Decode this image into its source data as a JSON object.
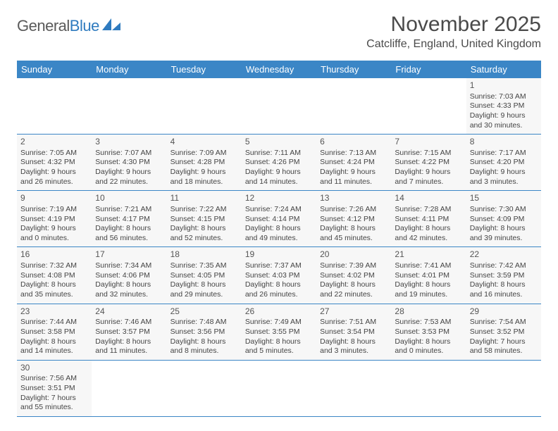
{
  "logo": {
    "text1": "General",
    "text2": "Blue",
    "color1": "#5a5a5a",
    "color2": "#2f7bbf",
    "sail_color": "#2f7bbf"
  },
  "title": "November 2025",
  "location": "Catcliffe, England, United Kingdom",
  "colors": {
    "header_bg": "#3b86c6",
    "cell_bg": "#f7f7f7",
    "border": "#3b86c6"
  },
  "day_labels": [
    "Sunday",
    "Monday",
    "Tuesday",
    "Wednesday",
    "Thursday",
    "Friday",
    "Saturday"
  ],
  "weeks": [
    [
      null,
      null,
      null,
      null,
      null,
      null,
      {
        "n": "1",
        "sr": "7:03 AM",
        "ss": "4:33 PM",
        "dl": "9 hours and 30 minutes."
      }
    ],
    [
      {
        "n": "2",
        "sr": "7:05 AM",
        "ss": "4:32 PM",
        "dl": "9 hours and 26 minutes."
      },
      {
        "n": "3",
        "sr": "7:07 AM",
        "ss": "4:30 PM",
        "dl": "9 hours and 22 minutes."
      },
      {
        "n": "4",
        "sr": "7:09 AM",
        "ss": "4:28 PM",
        "dl": "9 hours and 18 minutes."
      },
      {
        "n": "5",
        "sr": "7:11 AM",
        "ss": "4:26 PM",
        "dl": "9 hours and 14 minutes."
      },
      {
        "n": "6",
        "sr": "7:13 AM",
        "ss": "4:24 PM",
        "dl": "9 hours and 11 minutes."
      },
      {
        "n": "7",
        "sr": "7:15 AM",
        "ss": "4:22 PM",
        "dl": "9 hours and 7 minutes."
      },
      {
        "n": "8",
        "sr": "7:17 AM",
        "ss": "4:20 PM",
        "dl": "9 hours and 3 minutes."
      }
    ],
    [
      {
        "n": "9",
        "sr": "7:19 AM",
        "ss": "4:19 PM",
        "dl": "9 hours and 0 minutes."
      },
      {
        "n": "10",
        "sr": "7:21 AM",
        "ss": "4:17 PM",
        "dl": "8 hours and 56 minutes."
      },
      {
        "n": "11",
        "sr": "7:22 AM",
        "ss": "4:15 PM",
        "dl": "8 hours and 52 minutes."
      },
      {
        "n": "12",
        "sr": "7:24 AM",
        "ss": "4:14 PM",
        "dl": "8 hours and 49 minutes."
      },
      {
        "n": "13",
        "sr": "7:26 AM",
        "ss": "4:12 PM",
        "dl": "8 hours and 45 minutes."
      },
      {
        "n": "14",
        "sr": "7:28 AM",
        "ss": "4:11 PM",
        "dl": "8 hours and 42 minutes."
      },
      {
        "n": "15",
        "sr": "7:30 AM",
        "ss": "4:09 PM",
        "dl": "8 hours and 39 minutes."
      }
    ],
    [
      {
        "n": "16",
        "sr": "7:32 AM",
        "ss": "4:08 PM",
        "dl": "8 hours and 35 minutes."
      },
      {
        "n": "17",
        "sr": "7:34 AM",
        "ss": "4:06 PM",
        "dl": "8 hours and 32 minutes."
      },
      {
        "n": "18",
        "sr": "7:35 AM",
        "ss": "4:05 PM",
        "dl": "8 hours and 29 minutes."
      },
      {
        "n": "19",
        "sr": "7:37 AM",
        "ss": "4:03 PM",
        "dl": "8 hours and 26 minutes."
      },
      {
        "n": "20",
        "sr": "7:39 AM",
        "ss": "4:02 PM",
        "dl": "8 hours and 22 minutes."
      },
      {
        "n": "21",
        "sr": "7:41 AM",
        "ss": "4:01 PM",
        "dl": "8 hours and 19 minutes."
      },
      {
        "n": "22",
        "sr": "7:42 AM",
        "ss": "3:59 PM",
        "dl": "8 hours and 16 minutes."
      }
    ],
    [
      {
        "n": "23",
        "sr": "7:44 AM",
        "ss": "3:58 PM",
        "dl": "8 hours and 14 minutes."
      },
      {
        "n": "24",
        "sr": "7:46 AM",
        "ss": "3:57 PM",
        "dl": "8 hours and 11 minutes."
      },
      {
        "n": "25",
        "sr": "7:48 AM",
        "ss": "3:56 PM",
        "dl": "8 hours and 8 minutes."
      },
      {
        "n": "26",
        "sr": "7:49 AM",
        "ss": "3:55 PM",
        "dl": "8 hours and 5 minutes."
      },
      {
        "n": "27",
        "sr": "7:51 AM",
        "ss": "3:54 PM",
        "dl": "8 hours and 3 minutes."
      },
      {
        "n": "28",
        "sr": "7:53 AM",
        "ss": "3:53 PM",
        "dl": "8 hours and 0 minutes."
      },
      {
        "n": "29",
        "sr": "7:54 AM",
        "ss": "3:52 PM",
        "dl": "7 hours and 58 minutes."
      }
    ],
    [
      {
        "n": "30",
        "sr": "7:56 AM",
        "ss": "3:51 PM",
        "dl": "7 hours and 55 minutes."
      },
      null,
      null,
      null,
      null,
      null,
      null
    ]
  ],
  "labels": {
    "sunrise": "Sunrise:",
    "sunset": "Sunset:",
    "daylight": "Daylight:"
  }
}
